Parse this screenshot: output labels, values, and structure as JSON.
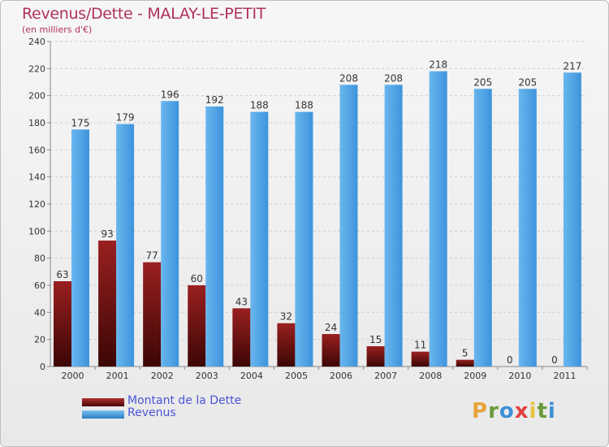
{
  "title": "Revenus/Dette - MALAY-LE-PETIT",
  "subtitle": "(en milliers d'€)",
  "brand": {
    "letters": [
      "P",
      "r",
      "o",
      "x",
      "i",
      "t",
      "i"
    ],
    "colors": [
      "#e8a33d",
      "#6a9a3a",
      "#3d8fd8",
      "#e04040",
      "#e8c33d",
      "#6a9a3a",
      "#3d8fd8"
    ]
  },
  "colors": {
    "dette": "#7a1515",
    "revenus": "#4aa0e2",
    "grid": "#cfcfcf",
    "text": "#333333"
  },
  "legend": [
    {
      "label": "Montant de la Dette",
      "series": 0
    },
    {
      "label": "Revenus",
      "series": 1
    }
  ],
  "chart_data": {
    "type": "bar",
    "title": "Revenus/Dette - MALAY-LE-PETIT",
    "subtitle": "(en milliers d'€)",
    "categories": [
      "2000",
      "2001",
      "2002",
      "2003",
      "2004",
      "2005",
      "2006",
      "2007",
      "2008",
      "2009",
      "2010",
      "2011"
    ],
    "series": [
      {
        "name": "Montant de la Dette",
        "values": [
          63,
          93,
          77,
          60,
          43,
          32,
          24,
          15,
          11,
          5,
          0,
          0
        ]
      },
      {
        "name": "Revenus",
        "values": [
          175,
          179,
          196,
          192,
          188,
          188,
          208,
          208,
          218,
          205,
          205,
          217
        ]
      }
    ],
    "ylim": [
      0,
      240
    ],
    "yticks": [
      0,
      20,
      40,
      60,
      80,
      100,
      120,
      140,
      160,
      180,
      200,
      220,
      240
    ],
    "grid": true,
    "legend_position": "bottom-left"
  }
}
